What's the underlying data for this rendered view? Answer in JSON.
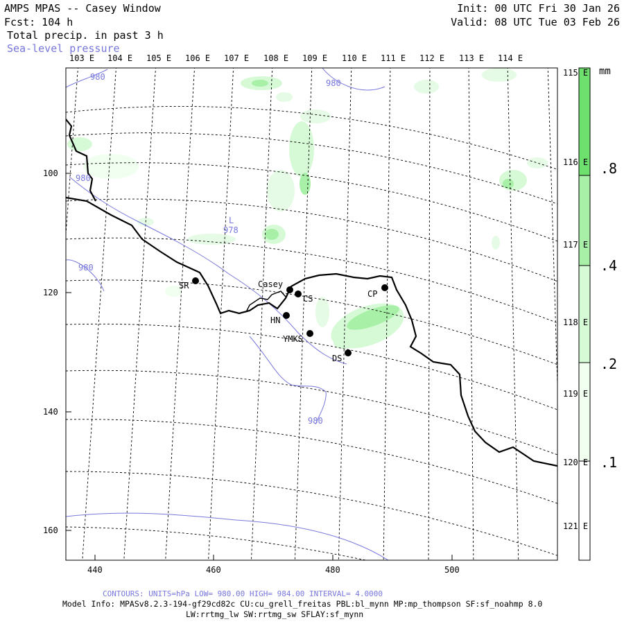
{
  "header": {
    "title": "AMPS MPAS -- Casey Window",
    "fcst": "Fcst: 104 h",
    "field": "Total precip. in past 3 h",
    "overlay": "Sea-level pressure",
    "init": "Init: 00 UTC Fri 30 Jan 26",
    "valid": "Valid: 08 UTC Tue 03 Feb 26"
  },
  "lon_labels": [
    "103 E",
    "104 E",
    "105 E",
    "106 E",
    "107 E",
    "108 E",
    "109 E",
    "110 E",
    "111 E",
    "112 E",
    "113 E",
    "114 E"
  ],
  "lat_labels": [
    "115 E",
    "116 E",
    "117 E",
    "118 E",
    "119 E",
    "120 E",
    "121 E"
  ],
  "x_ticks": [
    "440",
    "460",
    "480",
    "500"
  ],
  "y_ticks": [
    "100",
    "120",
    "140",
    "160"
  ],
  "isobar_labels": [
    "980",
    "980",
    "980",
    "980",
    "980"
  ],
  "low_center": {
    "symbol": "L",
    "value": "978"
  },
  "stations": [
    "SR",
    "Casey",
    "CS",
    "CP",
    "HN",
    "YMKS",
    "DS"
  ],
  "colorbar": {
    "unit": "mm",
    "levels": [
      ".1",
      ".2",
      ".4",
      ".8"
    ],
    "colors": [
      "#f0fff0",
      "#d6fad6",
      "#a8f0a8",
      "#6ee06e"
    ]
  },
  "footer": {
    "contours": "CONTOURS: UNITS=hPa LOW= 980.00 HIGH= 984.00 INTERVAL= 4.0000",
    "model_info": "Model Info: MPASv8.2.3-194-gf29cd82c CU:cu_grell_freitas PBL:bl_mynn MP:mp_thompson SF:sf_noahmp 8.0",
    "model_info2": "LW:rrtmg_lw SW:rrtmg_sw SFLAY:sf_mynn"
  },
  "colors": {
    "isobar": "#7777dd",
    "coast": "#000000",
    "grid": "#000000"
  }
}
